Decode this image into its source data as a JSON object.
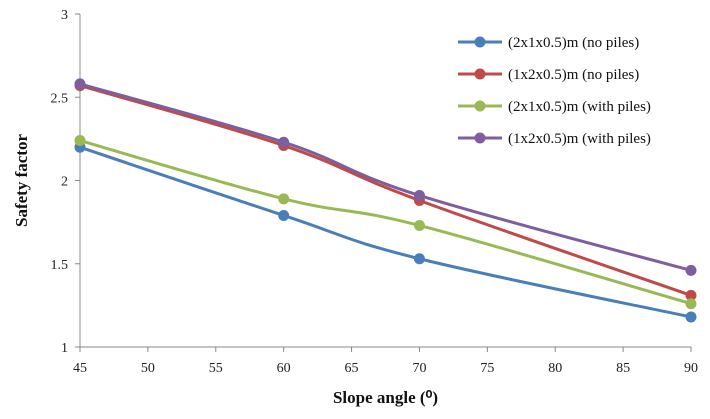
{
  "chart_data": {
    "type": "line",
    "title": "",
    "xlabel": "Slope angle (⁰)",
    "ylabel": "Safety factor",
    "xlim": [
      45,
      90
    ],
    "ylim": [
      1,
      3
    ],
    "x_ticks": [
      "45",
      "50",
      "55",
      "60",
      "65",
      "70",
      "75",
      "80",
      "85",
      "90"
    ],
    "y_ticks": [
      "1",
      "1.5",
      "2",
      "2.5",
      "3"
    ],
    "grid": false,
    "legend_position": "top-right",
    "x": [
      45,
      60,
      70,
      90
    ],
    "series": [
      {
        "name": "(2x1x0.5)m (no piles)",
        "color": "#4a7ebb",
        "values": [
          2.2,
          1.79,
          1.53,
          1.18
        ]
      },
      {
        "name": "(1x2x0.5)m (no piles)",
        "color": "#be4b48",
        "values": [
          2.57,
          2.21,
          1.88,
          1.31
        ]
      },
      {
        "name": "(2x1x0.5)m (with piles)",
        "color": "#98b954",
        "values": [
          2.24,
          1.89,
          1.73,
          1.26
        ]
      },
      {
        "name": "(1x2x0.5)m (with piles)",
        "color": "#7d5fa0",
        "values": [
          2.58,
          2.23,
          1.91,
          1.46
        ]
      }
    ]
  }
}
